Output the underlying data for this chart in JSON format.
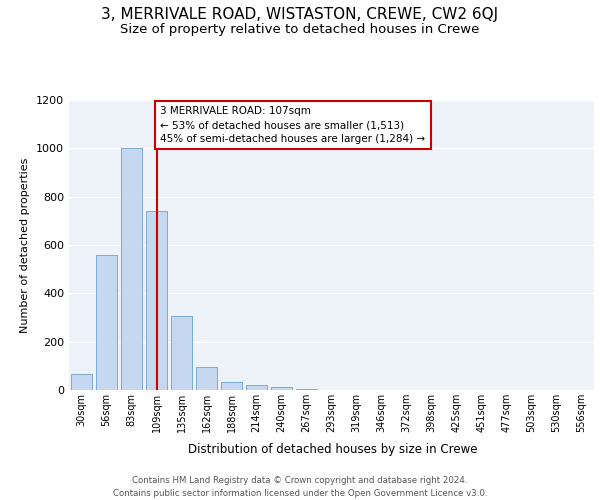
{
  "title": "3, MERRIVALE ROAD, WISTASTON, CREWE, CW2 6QJ",
  "subtitle": "Size of property relative to detached houses in Crewe",
  "xlabel": "Distribution of detached houses by size in Crewe",
  "ylabel": "Number of detached properties",
  "footer_line1": "Contains HM Land Registry data © Crown copyright and database right 2024.",
  "footer_line2": "Contains public sector information licensed under the Open Government Licence v3.0.",
  "bar_labels": [
    "30sqm",
    "56sqm",
    "83sqm",
    "109sqm",
    "135sqm",
    "162sqm",
    "188sqm",
    "214sqm",
    "240sqm",
    "267sqm",
    "293sqm",
    "319sqm",
    "346sqm",
    "372sqm",
    "398sqm",
    "425sqm",
    "451sqm",
    "477sqm",
    "503sqm",
    "530sqm",
    "556sqm"
  ],
  "bar_values": [
    65,
    560,
    1000,
    740,
    305,
    95,
    35,
    22,
    12,
    5,
    0,
    0,
    0,
    0,
    0,
    0,
    0,
    0,
    0,
    0,
    0
  ],
  "bar_color": "#c5d8f0",
  "bar_edge_color": "#7aaad4",
  "vline_x": 3,
  "vline_color": "#cc0000",
  "annotation_text": "3 MERRIVALE ROAD: 107sqm\n← 53% of detached houses are smaller (1,513)\n45% of semi-detached houses are larger (1,284) →",
  "annotation_box_color": "#ffffff",
  "annotation_box_edge": "#cc0000",
  "ylim": [
    0,
    1200
  ],
  "yticks": [
    0,
    200,
    400,
    600,
    800,
    1000,
    1200
  ],
  "background_color": "#eef3fa",
  "grid_color": "#ffffff",
  "title_fontsize": 11,
  "subtitle_fontsize": 9.5
}
